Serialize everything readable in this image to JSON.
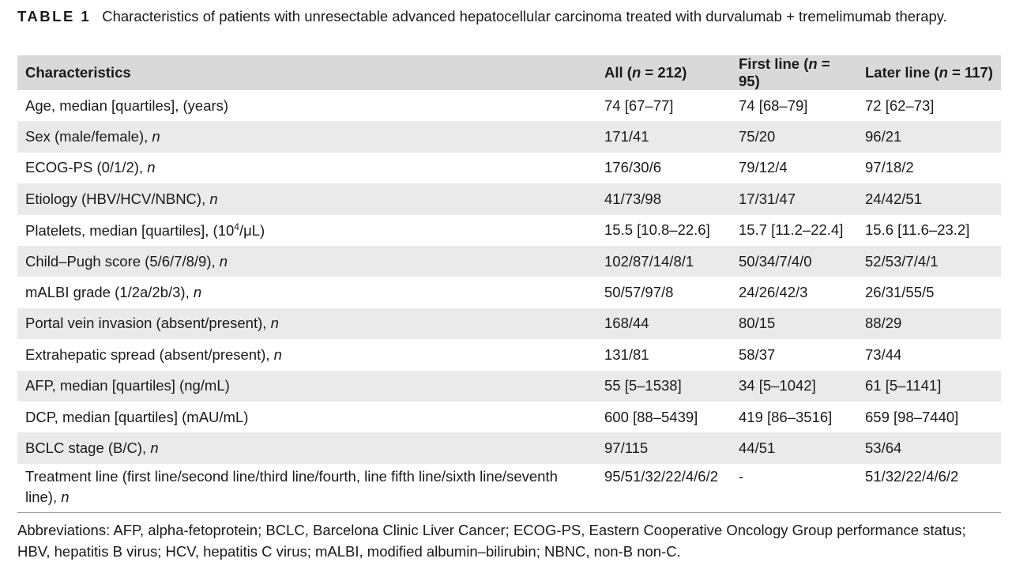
{
  "caption": {
    "label": "TABLE 1",
    "text": "Characteristics of patients with unresectable advanced hepatocellular carcinoma treated with durvalumab + tremelimumab therapy."
  },
  "table": {
    "headers": [
      {
        "pre": "Characteristics",
        "italic": "",
        "post": ""
      },
      {
        "pre": "All (",
        "italic": "n",
        "post": " = 212)"
      },
      {
        "pre": "First line (",
        "italic": "n",
        "post": " = 95)"
      },
      {
        "pre": "Later line (",
        "italic": "n",
        "post": " = 117)"
      }
    ],
    "rows": [
      {
        "label": "Age, median [quartiles], (years)",
        "label_italic": "",
        "label_sup": "",
        "label_post": "",
        "values": [
          "74 [67–77]",
          "74 [68–79]",
          "72 [62–73]"
        ]
      },
      {
        "label": "Sex (male/female), ",
        "label_italic": "n",
        "label_sup": "",
        "label_post": "",
        "values": [
          "171/41",
          "75/20",
          "96/21"
        ]
      },
      {
        "label": "ECOG-PS (0/1/2), ",
        "label_italic": "n",
        "label_sup": "",
        "label_post": "",
        "values": [
          "176/30/6",
          "79/12/4",
          "97/18/2"
        ]
      },
      {
        "label": "Etiology (HBV/HCV/NBNC), ",
        "label_italic": "n",
        "label_sup": "",
        "label_post": "",
        "values": [
          "41/73/98",
          "17/31/47",
          "24/42/51"
        ]
      },
      {
        "label": "Platelets, median [quartiles], (10",
        "label_italic": "",
        "label_sup": "4",
        "label_post": "/μL)",
        "values": [
          "15.5 [10.8–22.6]",
          "15.7 [11.2–22.4]",
          "15.6 [11.6–23.2]"
        ]
      },
      {
        "label": "Child–Pugh score (5/6/7/8/9), ",
        "label_italic": "n",
        "label_sup": "",
        "label_post": "",
        "values": [
          "102/87/14/8/1",
          "50/34/7/4/0",
          "52/53/7/4/1"
        ]
      },
      {
        "label": "mALBI grade (1/2a/2b/3), ",
        "label_italic": "n",
        "label_sup": "",
        "label_post": "",
        "values": [
          "50/57/97/8",
          "24/26/42/3",
          "26/31/55/5"
        ]
      },
      {
        "label": "Portal vein invasion (absent/present), ",
        "label_italic": "n",
        "label_sup": "",
        "label_post": "",
        "values": [
          "168/44",
          "80/15",
          "88/29"
        ]
      },
      {
        "label": "Extrahepatic spread (absent/present), ",
        "label_italic": "n",
        "label_sup": "",
        "label_post": "",
        "values": [
          "131/81",
          "58/37",
          "73/44"
        ]
      },
      {
        "label": "AFP, median [quartiles] (ng/mL)",
        "label_italic": "",
        "label_sup": "",
        "label_post": "",
        "values": [
          "55 [5–1538]",
          "34 [5–1042]",
          "61 [5–1141]"
        ]
      },
      {
        "label": "DCP, median [quartiles] (mAU/mL)",
        "label_italic": "",
        "label_sup": "",
        "label_post": "",
        "values": [
          "600 [88–5439]",
          "419 [86–3516]",
          "659 [98–7440]"
        ]
      },
      {
        "label": "BCLC stage (B/C), ",
        "label_italic": "n",
        "label_sup": "",
        "label_post": "",
        "values": [
          "97/115",
          "44/51",
          "53/64"
        ]
      },
      {
        "label": "Treatment line (first line/second line/third line/fourth, line fifth line/sixth line/seventh line), ",
        "label_italic": "n",
        "label_sup": "",
        "label_post": "",
        "values": [
          "95/51/32/22/4/6/2",
          "-",
          "51/32/22/4/6/2"
        ]
      }
    ]
  },
  "footnote": "Abbreviations: AFP, alpha-fetoprotein; BCLC, Barcelona Clinic Liver Cancer; ECOG-PS, Eastern Cooperative Oncology Group performance status; HBV, hepatitis B virus; HCV, hepatitis C virus; mALBI, modified albumin–bilirubin; NBNC, non-B non-C."
}
